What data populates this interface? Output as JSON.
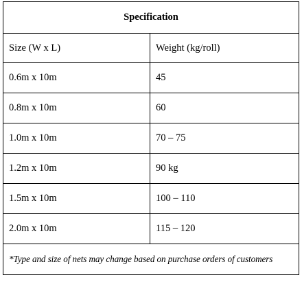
{
  "table": {
    "title": "Specification",
    "headers": [
      "Size  (W x L)",
      "Weight  (kg/roll)"
    ],
    "rows": [
      [
        "0.6m x 10m",
        "45"
      ],
      [
        "0.8m x 10m",
        "60"
      ],
      [
        "1.0m x 10m",
        "70 – 75"
      ],
      [
        "1.2m x 10m",
        "90 kg"
      ],
      [
        "1.5m x 10m",
        "100 – 110"
      ],
      [
        "2.0m x 10m",
        "115 – 120"
      ]
    ],
    "note": "*Type and size of nets may change based on purchase orders of customers"
  }
}
